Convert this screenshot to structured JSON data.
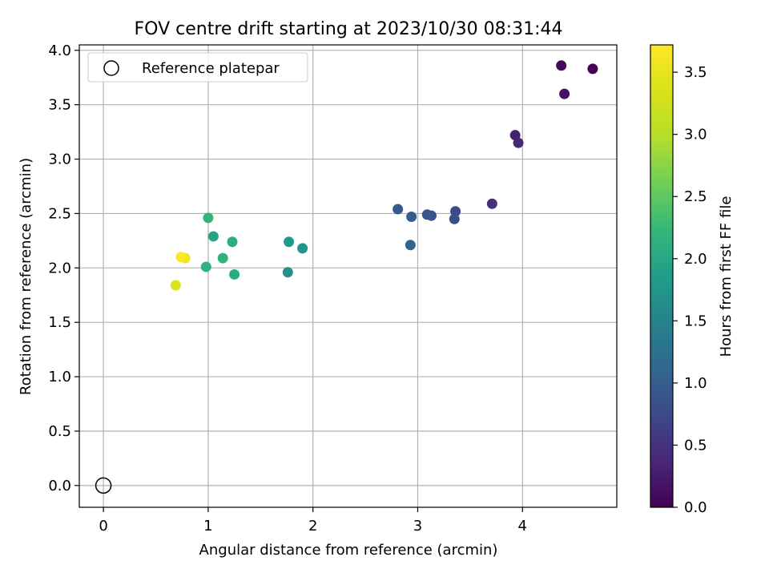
{
  "chart_data": {
    "type": "scatter",
    "title": "FOV centre drift starting at 2023/10/30 08:31:44",
    "xlabel": "Angular distance from reference (arcmin)",
    "ylabel": "Rotation from reference (arcmin)",
    "xlim": [
      -0.23,
      4.9
    ],
    "ylim": [
      -0.2,
      4.05
    ],
    "x_ticks": [
      0,
      1,
      2,
      3,
      4
    ],
    "x_tick_labels": [
      "0",
      "1",
      "2",
      "3",
      "4"
    ],
    "y_ticks": [
      0.0,
      0.5,
      1.0,
      1.5,
      2.0,
      2.5,
      3.0,
      3.5,
      4.0
    ],
    "y_tick_labels": [
      "0.0",
      "0.5",
      "1.0",
      "1.5",
      "2.0",
      "2.5",
      "3.0",
      "3.5",
      "4.0"
    ],
    "grid": true,
    "legend": {
      "placement": "upper-left",
      "entries": [
        {
          "label": "Reference platepar",
          "marker": "open-circle"
        }
      ]
    },
    "reference": {
      "x": 0.0,
      "y": 0.0
    },
    "colorbar": {
      "label": "Hours from first FF file",
      "colormap": "viridis",
      "range": [
        0.0,
        3.72
      ],
      "ticks": [
        0.0,
        0.5,
        1.0,
        1.5,
        2.0,
        2.5,
        3.0,
        3.5
      ],
      "tick_labels": [
        "0.0",
        "0.5",
        "1.0",
        "1.5",
        "2.0",
        "2.5",
        "3.0",
        "3.5"
      ]
    },
    "points": [
      {
        "x": 4.67,
        "y": 3.83,
        "hours": 0.02
      },
      {
        "x": 4.37,
        "y": 3.86,
        "hours": 0.08
      },
      {
        "x": 4.4,
        "y": 3.6,
        "hours": 0.15
      },
      {
        "x": 3.93,
        "y": 3.22,
        "hours": 0.3
      },
      {
        "x": 3.96,
        "y": 3.15,
        "hours": 0.35
      },
      {
        "x": 3.71,
        "y": 2.59,
        "hours": 0.45
      },
      {
        "x": 3.36,
        "y": 2.52,
        "hours": 0.75
      },
      {
        "x": 3.35,
        "y": 2.45,
        "hours": 0.8
      },
      {
        "x": 3.13,
        "y": 2.48,
        "hours": 0.85
      },
      {
        "x": 3.09,
        "y": 2.49,
        "hours": 0.9
      },
      {
        "x": 2.94,
        "y": 2.47,
        "hours": 1.0
      },
      {
        "x": 2.93,
        "y": 2.21,
        "hours": 1.05
      },
      {
        "x": 2.81,
        "y": 2.54,
        "hours": 0.95
      },
      {
        "x": 1.76,
        "y": 1.96,
        "hours": 1.7
      },
      {
        "x": 1.9,
        "y": 2.18,
        "hours": 1.75
      },
      {
        "x": 1.77,
        "y": 2.24,
        "hours": 1.8
      },
      {
        "x": 1.25,
        "y": 1.94,
        "hours": 2.05
      },
      {
        "x": 1.23,
        "y": 2.24,
        "hours": 2.1
      },
      {
        "x": 1.14,
        "y": 2.09,
        "hours": 2.15
      },
      {
        "x": 1.05,
        "y": 2.29,
        "hours": 1.95
      },
      {
        "x": 0.98,
        "y": 2.01,
        "hours": 2.15
      },
      {
        "x": 1.0,
        "y": 2.46,
        "hours": 2.2
      },
      {
        "x": 0.69,
        "y": 1.84,
        "hours": 3.4
      },
      {
        "x": 0.78,
        "y": 2.09,
        "hours": 3.6
      },
      {
        "x": 0.74,
        "y": 2.1,
        "hours": 3.7
      }
    ]
  }
}
